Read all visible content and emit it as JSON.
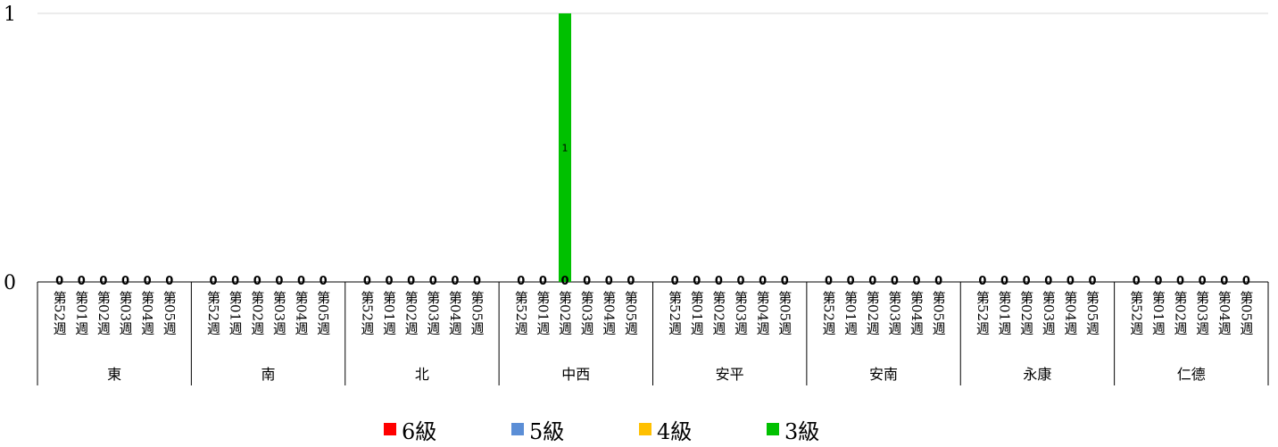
{
  "chart_data": {
    "type": "bar",
    "stacked": true,
    "ylim": [
      0,
      1
    ],
    "yticks": [
      "0",
      "1"
    ],
    "grid": true,
    "legend_position": "bottom",
    "groups": [
      "東",
      "南",
      "北",
      "中西",
      "安平",
      "安南",
      "永康",
      "仁德"
    ],
    "weeks": [
      "第52週",
      "第01週",
      "第02週",
      "第03週",
      "第04週",
      "第05週"
    ],
    "series": [
      {
        "name": "6級",
        "color": "#ff0000",
        "values": [
          [
            0,
            0,
            0,
            0,
            0,
            0
          ],
          [
            0,
            0,
            0,
            0,
            0,
            0
          ],
          [
            0,
            0,
            0,
            0,
            0,
            0
          ],
          [
            0,
            0,
            0,
            0,
            0,
            0
          ],
          [
            0,
            0,
            0,
            0,
            0,
            0
          ],
          [
            0,
            0,
            0,
            0,
            0,
            0
          ],
          [
            0,
            0,
            0,
            0,
            0,
            0
          ],
          [
            0,
            0,
            0,
            0,
            0,
            0
          ]
        ]
      },
      {
        "name": "5級",
        "color": "#5b8ed6",
        "values": [
          [
            0,
            0,
            0,
            0,
            0,
            0
          ],
          [
            0,
            0,
            0,
            0,
            0,
            0
          ],
          [
            0,
            0,
            0,
            0,
            0,
            0
          ],
          [
            0,
            0,
            0,
            0,
            0,
            0
          ],
          [
            0,
            0,
            0,
            0,
            0,
            0
          ],
          [
            0,
            0,
            0,
            0,
            0,
            0
          ],
          [
            0,
            0,
            0,
            0,
            0,
            0
          ],
          [
            0,
            0,
            0,
            0,
            0,
            0
          ]
        ]
      },
      {
        "name": "4級",
        "color": "#ffc000",
        "values": [
          [
            0,
            0,
            0,
            0,
            0,
            0
          ],
          [
            0,
            0,
            0,
            0,
            0,
            0
          ],
          [
            0,
            0,
            0,
            0,
            0,
            0
          ],
          [
            0,
            0,
            0,
            0,
            0,
            0
          ],
          [
            0,
            0,
            0,
            0,
            0,
            0
          ],
          [
            0,
            0,
            0,
            0,
            0,
            0
          ],
          [
            0,
            0,
            0,
            0,
            0,
            0
          ],
          [
            0,
            0,
            0,
            0,
            0,
            0
          ]
        ]
      },
      {
        "name": "3級",
        "color": "#00c000",
        "values": [
          [
            0,
            0,
            0,
            0,
            0,
            0
          ],
          [
            0,
            0,
            0,
            0,
            0,
            0
          ],
          [
            0,
            0,
            0,
            0,
            0,
            0
          ],
          [
            0,
            0,
            1,
            0,
            0,
            0
          ],
          [
            0,
            0,
            0,
            0,
            0,
            0
          ],
          [
            0,
            0,
            0,
            0,
            0,
            0
          ],
          [
            0,
            0,
            0,
            0,
            0,
            0
          ],
          [
            0,
            0,
            0,
            0,
            0,
            0
          ]
        ]
      }
    ]
  }
}
